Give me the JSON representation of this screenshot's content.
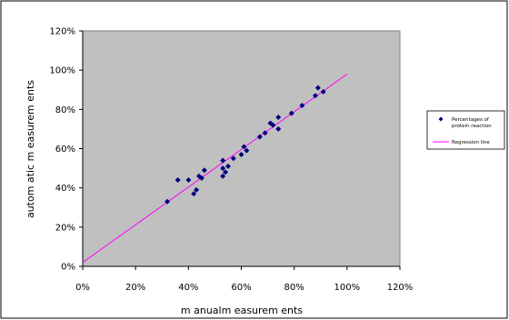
{
  "chart_data": {
    "type": "scatter",
    "title": "",
    "xlabel": "m anualm easurem ents",
    "ylabel": "autom atic m easurem ents",
    "xlim": [
      0,
      1.2
    ],
    "ylim": [
      0,
      1.2
    ],
    "x_ticks": [
      "0%",
      "20%",
      "40%",
      "60%",
      "80%",
      "100%",
      "120%"
    ],
    "y_ticks": [
      "0%",
      "20%",
      "40%",
      "60%",
      "80%",
      "100%",
      "120%"
    ],
    "grid": false,
    "legend_position": "right",
    "series": [
      {
        "name": "Percentages of protein reaction",
        "kind": "points",
        "color": "#000080",
        "x": [
          0.32,
          0.36,
          0.4,
          0.42,
          0.43,
          0.44,
          0.45,
          0.46,
          0.53,
          0.53,
          0.53,
          0.54,
          0.55,
          0.57,
          0.6,
          0.61,
          0.62,
          0.67,
          0.69,
          0.71,
          0.72,
          0.74,
          0.74,
          0.79,
          0.83,
          0.88,
          0.89,
          0.91
        ],
        "y": [
          0.33,
          0.44,
          0.44,
          0.37,
          0.39,
          0.46,
          0.45,
          0.49,
          0.5,
          0.46,
          0.54,
          0.48,
          0.51,
          0.55,
          0.57,
          0.61,
          0.59,
          0.66,
          0.68,
          0.73,
          0.72,
          0.76,
          0.7,
          0.78,
          0.82,
          0.87,
          0.91,
          0.89
        ]
      },
      {
        "name": "Regression line",
        "kind": "line",
        "color": "#ff00ff",
        "x": [
          0,
          1.0
        ],
        "y": [
          0.02,
          0.98
        ]
      }
    ],
    "legend_lines": [
      [
        "Percentages of",
        "protein reaction"
      ],
      [
        "Regression line"
      ]
    ]
  }
}
